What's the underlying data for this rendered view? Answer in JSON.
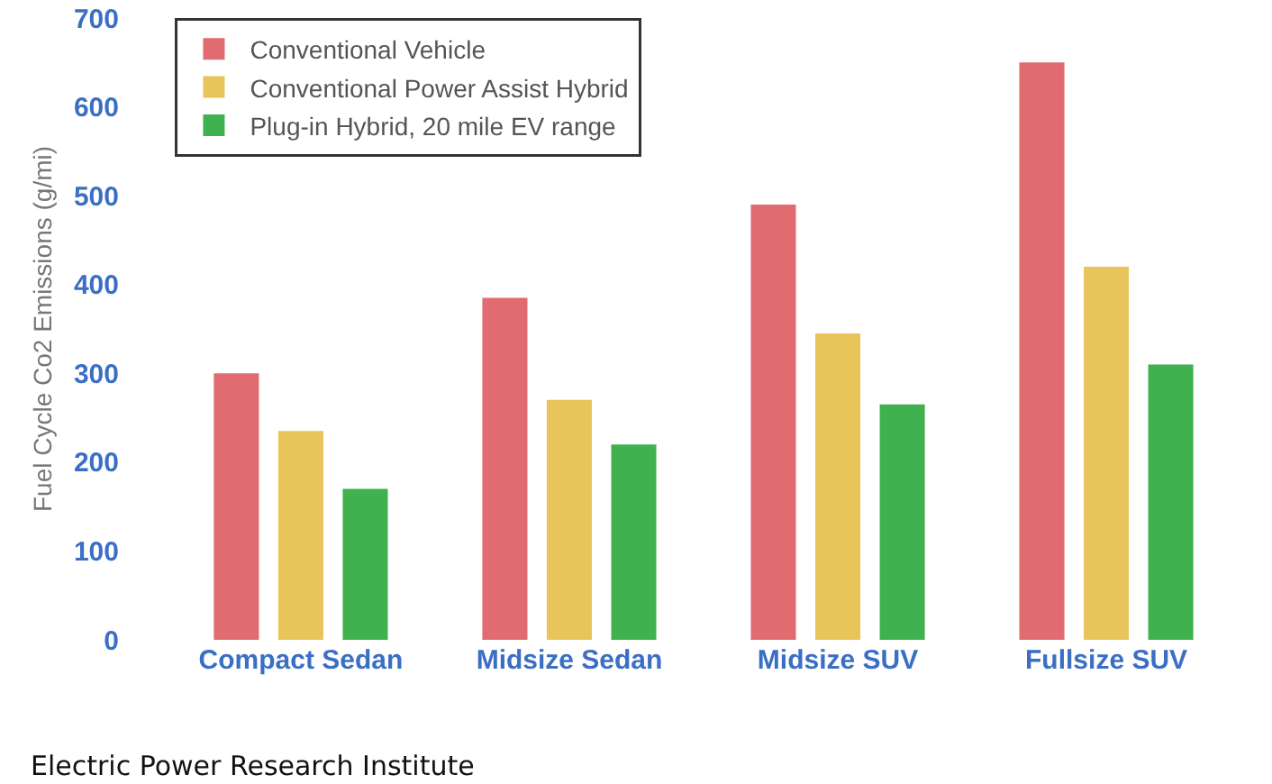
{
  "chart_data": {
    "type": "bar",
    "ylabel": "Fuel Cycle Co2 Emissions (g/mi)",
    "categories": [
      "Compact Sedan",
      "Midsize Sedan",
      "Midsize SUV",
      "Fullsize SUV"
    ],
    "series": [
      {
        "name": "Conventional Vehicle",
        "color": "#e06c72",
        "values": [
          300,
          385,
          490,
          650
        ]
      },
      {
        "name": "Conventional Power Assist Hybrid",
        "color": "#e8c45a",
        "values": [
          235,
          270,
          345,
          420
        ]
      },
      {
        "name": "Plug-in Hybrid, 20 mile EV range",
        "color": "#3fb24f",
        "values": [
          170,
          220,
          265,
          310
        ]
      }
    ],
    "ylim": [
      0,
      700
    ],
    "yticks": [
      0,
      100,
      200,
      300,
      400,
      500,
      600,
      700
    ],
    "grid": false,
    "legend": "top left",
    "annotations": [
      "Electric Power Research Institute"
    ]
  }
}
